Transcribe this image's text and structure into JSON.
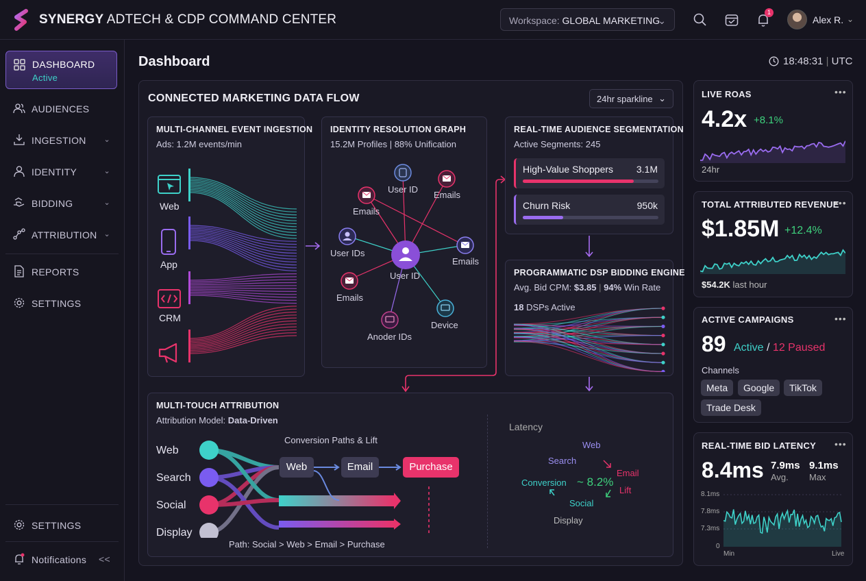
{
  "header": {
    "brand_bold": "SYNERGY",
    "brand_rest": " ADTECH & CDP COMMAND CENTER",
    "workspace_label": "Workspace: ",
    "workspace_value": "GLOBAL MARKETING",
    "notif_count": "1",
    "user": "Alex R."
  },
  "sidebar": {
    "items": [
      {
        "label": "DASHBOARD",
        "status": "Active"
      },
      {
        "label": "AUDIENCES"
      },
      {
        "label": "INGESTION"
      },
      {
        "label": "IDENTITY"
      },
      {
        "label": "BIDDING"
      },
      {
        "label": "ATTRIBUTION"
      },
      {
        "label": "REPORTS"
      },
      {
        "label": "SETTINGS"
      }
    ],
    "bottom": {
      "settings": "SETTINGS",
      "notifications": "Notifications",
      "collapse": "<<"
    }
  },
  "page": {
    "title": "Dashboard",
    "time": "18:48:31",
    "tz": "UTC"
  },
  "flow": {
    "title": "CONNECTED MARKETING DATA FLOW",
    "range": "24hr sparkline",
    "ingestion": {
      "title": "MULTI-CHANNEL EVENT INGESTION",
      "sub": "Ads: 1.2M events/min",
      "sources": [
        "Web",
        "App",
        "CRM"
      ]
    },
    "identity": {
      "title": "IDENTITY RESOLUTION GRAPH",
      "sub": "15.2M Profiles | 88% Unification",
      "center": "User ID",
      "nodes": [
        "User ID",
        "Emails",
        "Emails",
        "User IDs",
        "Emails",
        "Emails",
        "Anoder IDs",
        "Device"
      ]
    },
    "segments": {
      "title": "REAL-TIME AUDIENCE SEGMENTATION",
      "sub": "Active Segments: 245",
      "items": [
        {
          "name": "High-Value Shoppers",
          "value": "3.1M",
          "fill": 0.82
        },
        {
          "name": "Churn Risk",
          "value": "950k",
          "fill": 0.3
        }
      ]
    },
    "dsp": {
      "title": "PROGRAMMATIC DSP BIDDING ENGINE",
      "cpm_label": "Avg. Bid CPM: ",
      "cpm": "$3.85",
      "win": "94%",
      "win_label": " Win Rate",
      "dsps": "18",
      "dsps_label": " DSPs Active"
    },
    "attribution": {
      "title": "MULTI-TOUCH ATTRIBUTION",
      "model_label": "Attribution Model: ",
      "model": "Data-Driven",
      "channels": [
        "Web",
        "Search",
        "Social",
        "Display"
      ],
      "paths_title": "Conversion Paths & Lift",
      "steps": [
        "Web",
        "Email",
        "Purchase"
      ],
      "path": "Path: Social > Web > Email > Purchase",
      "latency_title": "Latency",
      "cycle": [
        "Web",
        "Search",
        "Email",
        "Lift",
        "Conversion",
        "Social",
        "Display"
      ],
      "lift": "~ 8.2%"
    }
  },
  "kpis": {
    "roas": {
      "title": "LIVE ROAS",
      "value": "4.2x",
      "delta": "+8.1%",
      "foot": "24hr"
    },
    "revenue": {
      "title": "TOTAL ATTRIBUTED REVENUE",
      "value": "$1.85M",
      "delta": "+12.4%",
      "foot_bold": "$54.2K",
      "foot": " last hour"
    },
    "campaigns": {
      "title": "ACTIVE CAMPAIGNS",
      "value": "89",
      "active": "Active",
      "sep": " / ",
      "paused": "12 Paused",
      "channels_label": "Channels",
      "channels": [
        "Meta",
        "Google",
        "TikTok",
        "Trade Desk"
      ]
    },
    "latency": {
      "title": "REAL-TIME BID LATENCY",
      "value": "8.4ms",
      "avg": "7.9ms",
      "avg_label": "Avg.",
      "max": "9.1ms",
      "max_label": "Max",
      "yticks": [
        "8.1ms",
        "7.8ms",
        "7.3ms",
        "0"
      ],
      "xmin": "Min",
      "xmax": "Live"
    }
  },
  "colors": {
    "accent": "#7a5cc8",
    "pink": "#e8336b",
    "teal": "#3ed1c9",
    "green": "#3ed17d"
  }
}
